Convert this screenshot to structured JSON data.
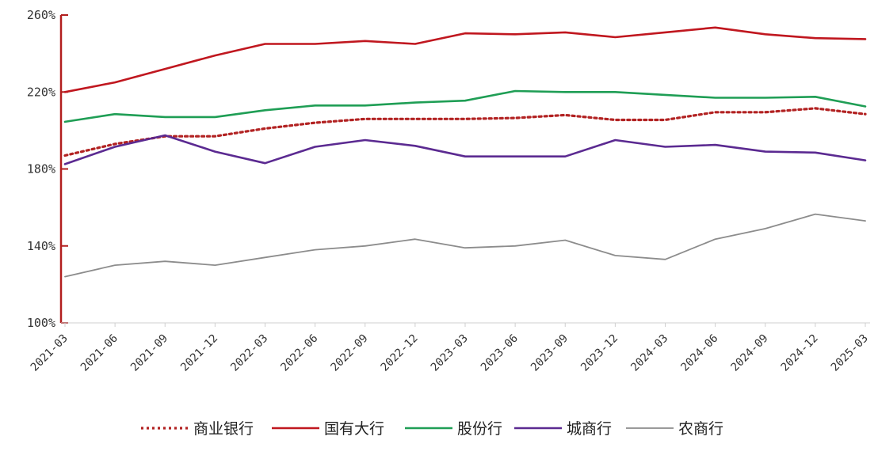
{
  "chart_data": {
    "type": "line",
    "title": "",
    "xlabel": "",
    "ylabel": "",
    "ylim": [
      100,
      260
    ],
    "yticks": [
      100,
      140,
      180,
      220,
      260
    ],
    "ytick_labels": [
      "100%",
      "140%",
      "180%",
      "220%",
      "260%"
    ],
    "grid": false,
    "legend_position": "bottom",
    "categories": [
      "2021-03",
      "2021-06",
      "2021-09",
      "2021-12",
      "2022-03",
      "2022-06",
      "2022-09",
      "2022-12",
      "2023-03",
      "2023-06",
      "2023-09",
      "2023-12",
      "2024-03",
      "2024-06",
      "2024-09",
      "2024-12",
      "2025-03"
    ],
    "series": [
      {
        "name": "商业银行",
        "color": "#b22222",
        "style": "dotted",
        "values": [
          187,
          193,
          197,
          197,
          201,
          204,
          206,
          206,
          206,
          206.5,
          208,
          205.5,
          205.5,
          209.5,
          209.5,
          211.5,
          208.5
        ]
      },
      {
        "name": "国有大行",
        "color": "#c0171f",
        "style": "solid",
        "values": [
          220,
          225,
          232,
          239,
          245,
          245,
          246.5,
          245,
          250.5,
          250,
          251,
          248.5,
          251,
          253.5,
          250,
          248,
          247.5
        ]
      },
      {
        "name": "股份行",
        "color": "#1f9e55",
        "style": "solid",
        "values": [
          204.5,
          208.5,
          207,
          207,
          210.5,
          213,
          213,
          214.5,
          215.5,
          220.5,
          220,
          220,
          218.5,
          217,
          217,
          217.5,
          212.5
        ]
      },
      {
        "name": "城商行",
        "color": "#5b2a91",
        "style": "solid",
        "values": [
          182.5,
          191.5,
          197.5,
          189,
          183,
          191.5,
          195,
          192,
          186.5,
          186.5,
          186.5,
          195,
          191.5,
          192.5,
          189,
          188.5,
          184.5
        ]
      },
      {
        "name": "农商行",
        "color": "#8c8c8c",
        "style": "solid",
        "values": [
          124,
          130,
          132,
          130,
          134,
          138,
          140,
          143.5,
          139,
          140,
          143,
          135,
          133,
          143.5,
          149,
          156.5,
          153
        ]
      }
    ]
  }
}
